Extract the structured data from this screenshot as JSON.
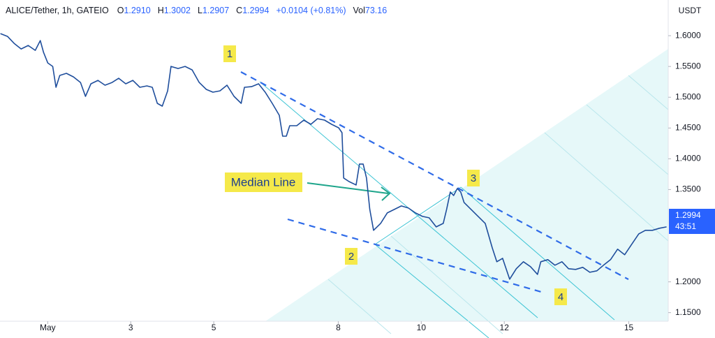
{
  "chart_data": {
    "type": "line",
    "title": "ALICE/Tether, 1h, GATEIO",
    "header": [
      {
        "label": "O",
        "value": "1.2910"
      },
      {
        "label": "H",
        "value": "1.3002"
      },
      {
        "label": "L",
        "value": "1.2907"
      },
      {
        "label": "C",
        "value": "1.2994"
      }
    ],
    "change": "+0.0104 (+0.81%)",
    "volume": {
      "label": "Vol",
      "value": "73.16"
    },
    "y_label": "USDT",
    "last_price": {
      "label": "1.2994",
      "countdown": "43:51"
    },
    "annotations": [
      "1",
      "2",
      "3",
      "4",
      "Median Line"
    ],
    "color": "#1f4e9c",
    "grid": false,
    "xlim": [
      -0.15,
      15.95
    ],
    "ylim": [
      1.136,
      1.658
    ],
    "xticks": [
      {
        "value": 1,
        "label": "May"
      },
      3,
      5,
      8,
      10,
      12,
      15
    ],
    "yticks": [
      {
        "value": 1.6,
        "label": "1.6000"
      },
      {
        "value": 1.55,
        "label": "1.5500"
      },
      {
        "value": 1.5,
        "label": "1.5000"
      },
      {
        "value": 1.45,
        "label": "1.4500"
      },
      {
        "value": 1.4,
        "label": "1.4000"
      },
      {
        "value": 1.35,
        "label": "1.3500"
      },
      {
        "value": 1.2,
        "label": "1.2000"
      },
      {
        "value": 1.15,
        "label": "1.1500"
      }
    ],
    "x": [
      -0.14,
      0.03,
      0.19,
      0.36,
      0.53,
      0.7,
      0.82,
      0.9,
      1.0,
      1.12,
      1.2,
      1.29,
      1.45,
      1.62,
      1.79,
      1.91,
      2.04,
      2.21,
      2.38,
      2.55,
      2.71,
      2.88,
      3.05,
      3.22,
      3.39,
      3.52,
      3.64,
      3.76,
      3.89,
      3.97,
      4.14,
      4.31,
      4.48,
      4.65,
      4.82,
      4.98,
      5.15,
      5.32,
      5.49,
      5.66,
      5.74,
      5.91,
      6.08,
      6.24,
      6.41,
      6.58,
      6.66,
      6.75,
      6.83,
      7.0,
      7.17,
      7.34,
      7.5,
      7.67,
      7.84,
      8.01,
      8.09,
      8.13,
      8.26,
      8.43,
      8.51,
      8.6,
      8.68,
      8.76,
      8.85,
      9.02,
      9.18,
      9.35,
      9.52,
      9.69,
      9.86,
      10.03,
      10.19,
      10.36,
      10.53,
      10.61,
      10.7,
      10.78,
      10.87,
      10.95,
      11.03,
      11.2,
      11.37,
      11.54,
      11.71,
      11.82,
      11.96,
      12.13,
      12.29,
      12.46,
      12.63,
      12.8,
      12.88,
      13.05,
      13.22,
      13.39,
      13.55,
      13.72,
      13.89,
      14.06,
      14.23,
      14.39,
      14.56,
      14.73,
      14.9,
      15.07,
      15.24,
      15.4,
      15.57,
      15.74,
      15.91
    ],
    "values": [
      1.6034,
      1.5989,
      1.5875,
      1.5785,
      1.5841,
      1.5762,
      1.5921,
      1.5728,
      1.5558,
      1.5501,
      1.5161,
      1.5354,
      1.5388,
      1.5331,
      1.524,
      1.5014,
      1.5218,
      1.5274,
      1.5195,
      1.524,
      1.5308,
      1.5218,
      1.5274,
      1.5161,
      1.5184,
      1.5161,
      1.49,
      1.4855,
      1.5104,
      1.5501,
      1.5467,
      1.5501,
      1.5444,
      1.524,
      1.5127,
      1.5082,
      1.5104,
      1.5195,
      1.5014,
      1.49,
      1.5161,
      1.5172,
      1.5218,
      1.5082,
      1.49,
      1.4707,
      1.4367,
      1.4367,
      1.4537,
      1.4537,
      1.4628,
      1.456,
      1.4651,
      1.4628,
      1.456,
      1.4503,
      1.4424,
      1.3687,
      1.363,
      1.3574,
      1.3914,
      1.3914,
      1.3687,
      1.3177,
      1.2837,
      1.295,
      1.312,
      1.3177,
      1.3234,
      1.32,
      1.312,
      1.3063,
      1.3041,
      1.2893,
      1.295,
      1.3177,
      1.346,
      1.3404,
      1.3517,
      1.346,
      1.329,
      1.3177,
      1.3063,
      1.295,
      1.2553,
      1.2327,
      1.2383,
      1.2043,
      1.2213,
      1.2327,
      1.2247,
      1.2122,
      1.2327,
      1.2361,
      1.227,
      1.2327,
      1.2213,
      1.2202,
      1.2236,
      1.2156,
      1.2179,
      1.227,
      1.2361,
      1.2531,
      1.244,
      1.261,
      1.278,
      1.2837,
      1.2837,
      1.2871,
      1.2893
    ]
  }
}
